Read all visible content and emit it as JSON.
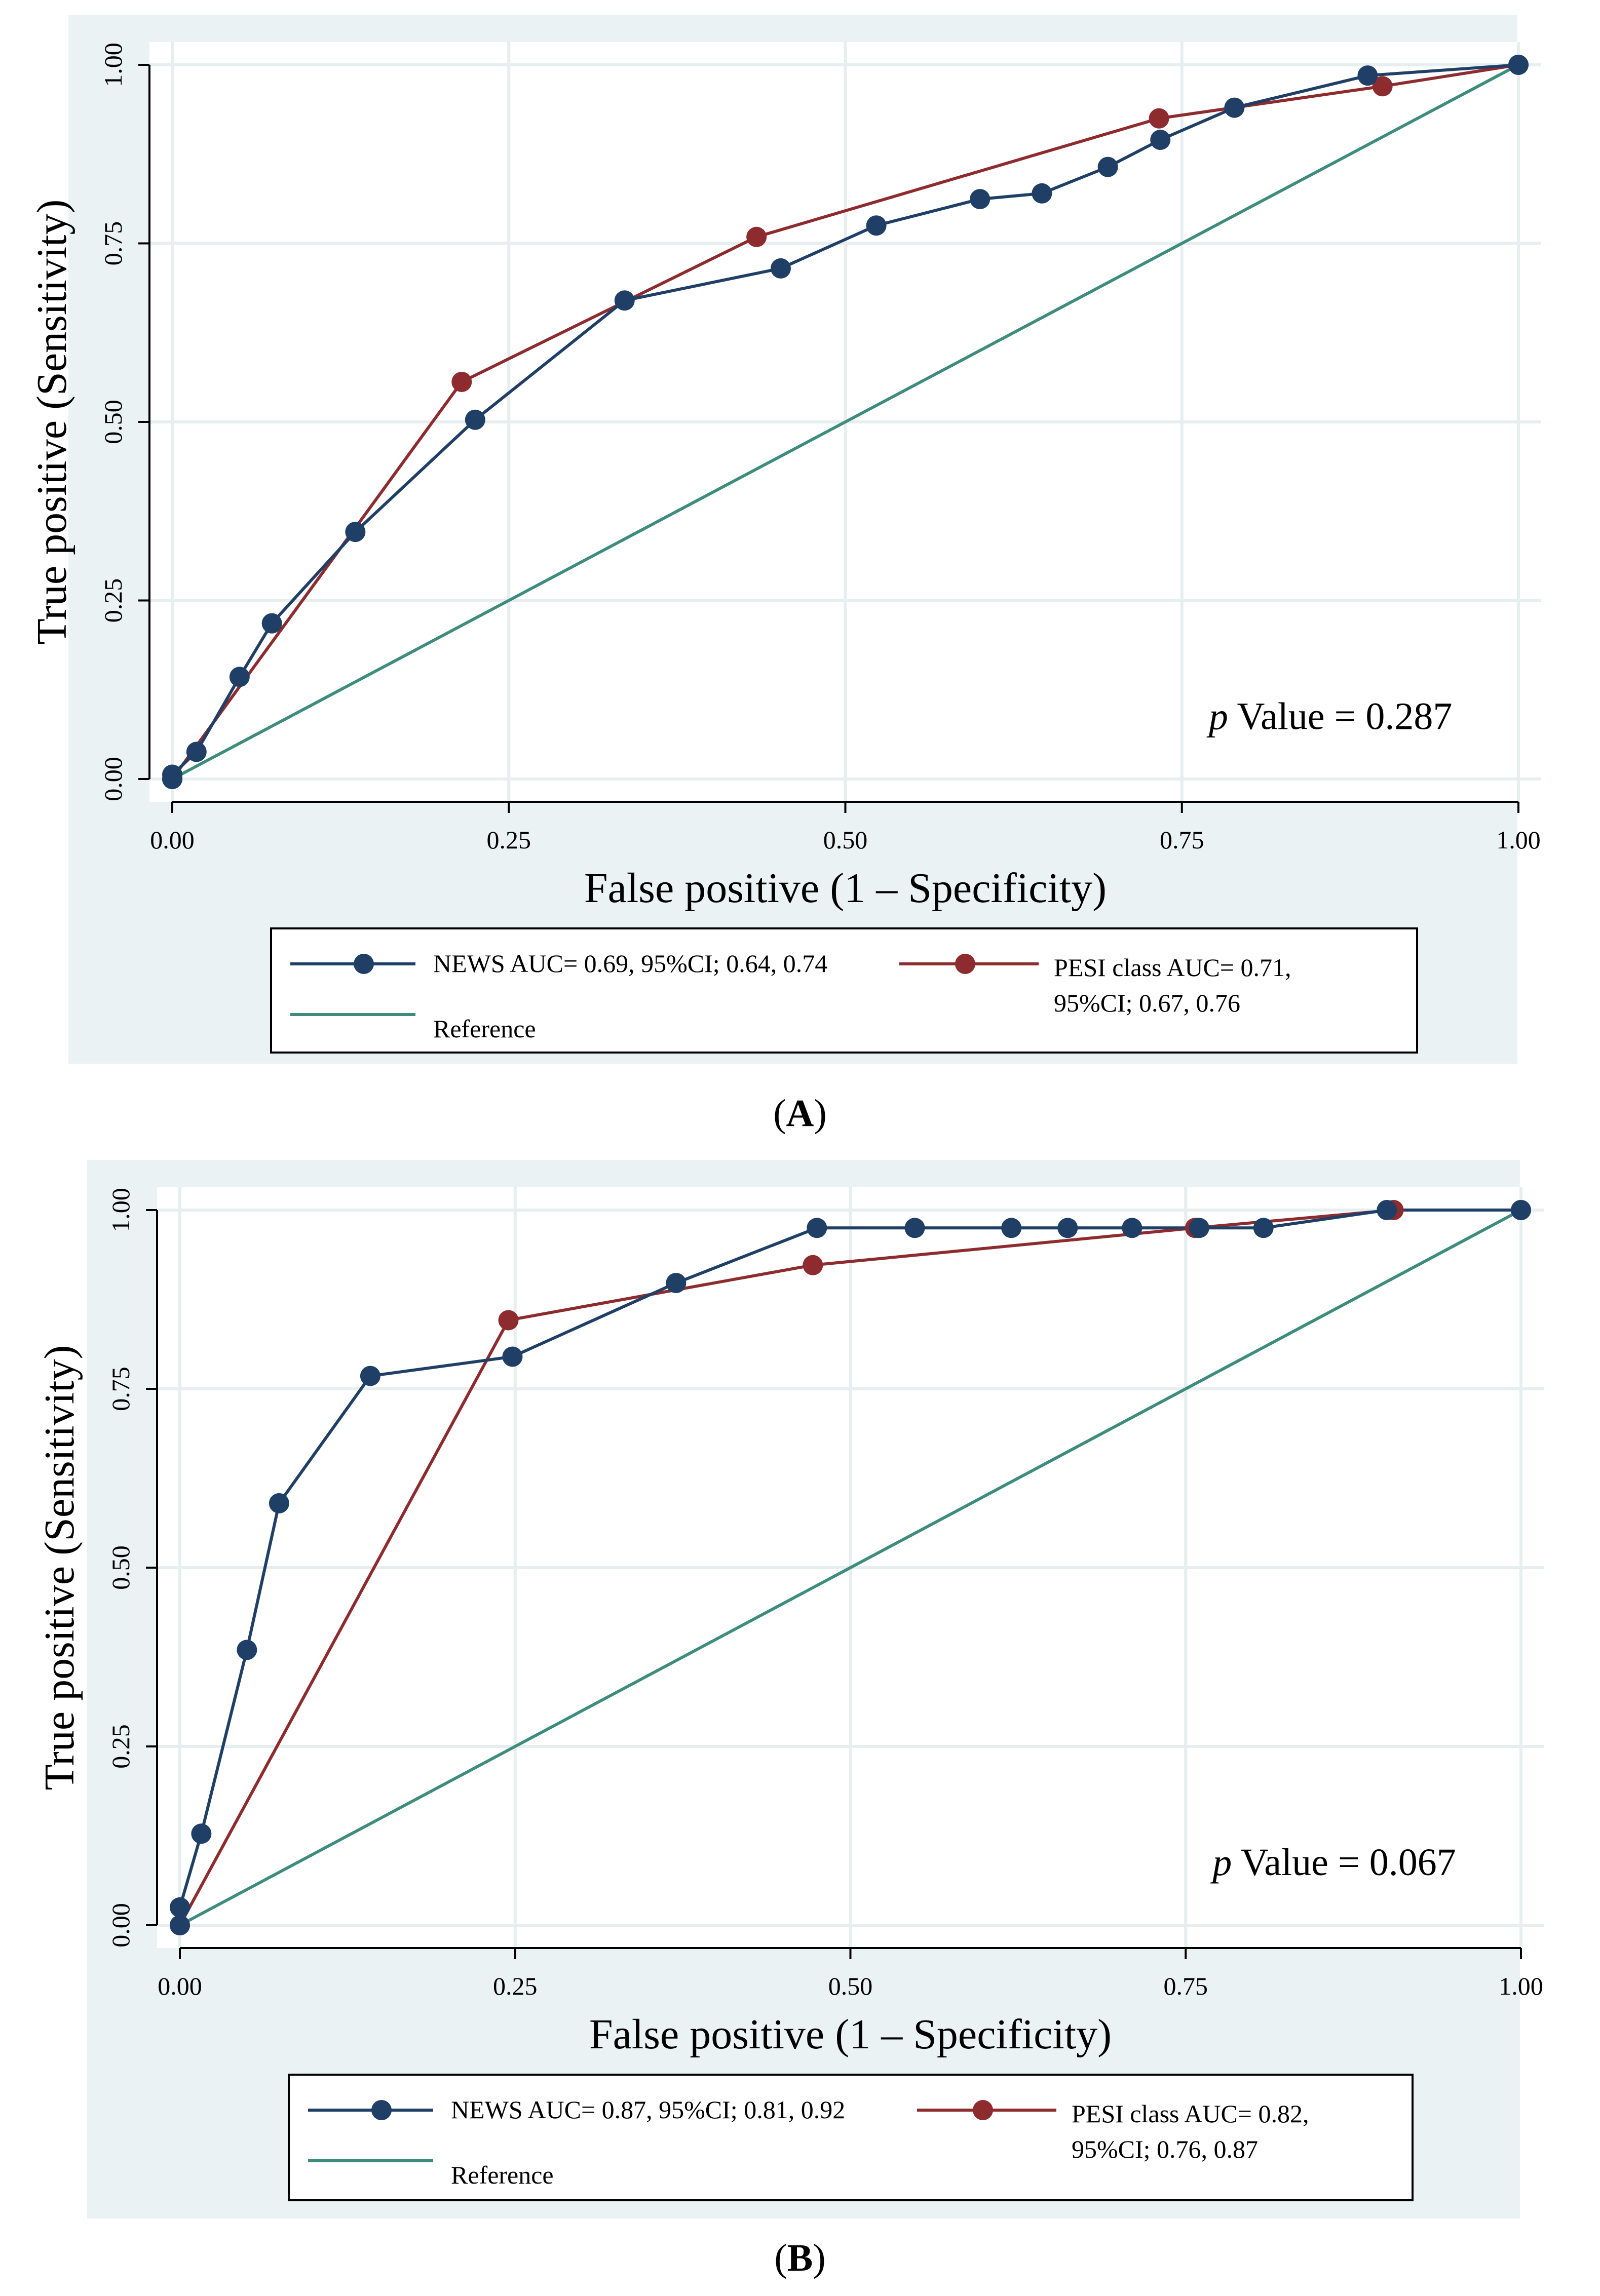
{
  "chart_data": [
    {
      "type": "line",
      "panel_label": "A",
      "xlabel": "False positive (1 – Specificity)",
      "ylabel": "True positive (Sensitivity)",
      "xlim": [
        0,
        1
      ],
      "ylim": [
        0,
        1
      ],
      "x_ticks": [
        "0.00",
        "0.25",
        "0.50",
        "0.75",
        "1.00"
      ],
      "y_ticks": [
        "0.00",
        "0.25",
        "0.50",
        "0.75",
        "1.00"
      ],
      "grid": true,
      "annotation": {
        "prefix": "p",
        "text": " Value = 0.287"
      },
      "series": [
        {
          "name": "NEWS",
          "color": "#1F3F66",
          "marker": true,
          "x": [
            0.0,
            0.0,
            0.018,
            0.05,
            0.074,
            0.136,
            0.225,
            0.336,
            0.452,
            0.523,
            0.6,
            0.646,
            0.695,
            0.734,
            0.789,
            0.888,
            1.0
          ],
          "y": [
            0.0,
            0.006,
            0.038,
            0.143,
            0.218,
            0.346,
            0.503,
            0.67,
            0.715,
            0.775,
            0.812,
            0.82,
            0.857,
            0.895,
            0.94,
            0.985,
            1.0
          ]
        },
        {
          "name": "PESI class",
          "color": "#8E2B2E",
          "marker": true,
          "x": [
            0.0,
            0.215,
            0.434,
            0.733,
            0.899,
            1.0
          ],
          "y": [
            0.0,
            0.556,
            0.759,
            0.925,
            0.97,
            1.0
          ]
        },
        {
          "name": "Reference",
          "color": "#3E8C7C",
          "marker": false,
          "x": [
            0,
            1
          ],
          "y": [
            0,
            1
          ]
        }
      ],
      "legend": {
        "placement": "bottom",
        "entries": [
          {
            "lines": [
              "NEWS AUC= 0.69, 95%CI; 0.64, 0.74"
            ]
          },
          {
            "lines": [
              "PESI class AUC= 0.71,",
              "95%CI; 0.67, 0.76"
            ]
          },
          {
            "lines": [
              "Reference"
            ]
          }
        ]
      }
    },
    {
      "type": "line",
      "panel_label": "B",
      "xlabel": "False positive (1 – Specificity)",
      "ylabel": "True positive (Sensitivity)",
      "xlim": [
        0,
        1
      ],
      "ylim": [
        0,
        1
      ],
      "x_ticks": [
        "0.00",
        "0.25",
        "0.50",
        "0.75",
        "1.00"
      ],
      "y_ticks": [
        "0.00",
        "0.25",
        "0.50",
        "0.75",
        "1.00"
      ],
      "grid": true,
      "annotation": {
        "prefix": "p",
        "text": " Value = 0.067"
      },
      "series": [
        {
          "name": "NEWS",
          "color": "#1F3F66",
          "marker": true,
          "x": [
            0.0,
            0.0,
            0.016,
            0.05,
            0.074,
            0.142,
            0.248,
            0.37,
            0.475,
            0.548,
            0.62,
            0.662,
            0.71,
            0.76,
            0.808,
            0.9,
            1.0
          ],
          "y": [
            0.0,
            0.025,
            0.128,
            0.385,
            0.59,
            0.768,
            0.795,
            0.898,
            0.975,
            0.975,
            0.975,
            0.975,
            0.975,
            0.975,
            0.975,
            1.0,
            1.0
          ]
        },
        {
          "name": "PESI class",
          "color": "#8E2B2E",
          "marker": true,
          "x": [
            0.0,
            0.245,
            0.472,
            0.757,
            0.905,
            1.0
          ],
          "y": [
            0.0,
            0.846,
            0.923,
            0.975,
            1.0,
            1.0
          ]
        },
        {
          "name": "Reference",
          "color": "#3E8C7C",
          "marker": false,
          "x": [
            0,
            1
          ],
          "y": [
            0,
            1
          ]
        }
      ],
      "legend": {
        "placement": "bottom",
        "entries": [
          {
            "lines": [
              "NEWS AUC= 0.87, 95%CI; 0.81, 0.92"
            ]
          },
          {
            "lines": [
              "PESI class AUC= 0.82,",
              "95%CI; 0.76, 0.87"
            ]
          },
          {
            "lines": [
              "Reference"
            ]
          }
        ]
      }
    }
  ],
  "captions": [
    {
      "open": "(",
      "label": "A",
      "close": ")"
    },
    {
      "open": "(",
      "label": "B",
      "close": ")"
    }
  ]
}
